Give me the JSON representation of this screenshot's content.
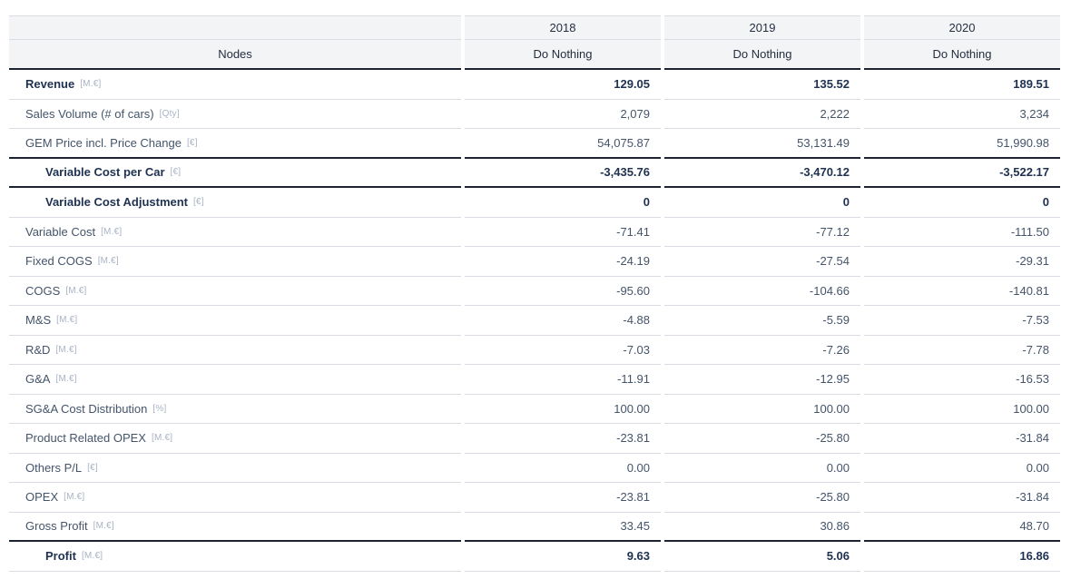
{
  "colors": {
    "header_bg": "#f3f4f6",
    "dark_border": "#1c2433",
    "light_border": "#d9dde3",
    "text_regular": "#44546a",
    "text_bold": "#1e3150",
    "unit_text": "#a8b3c5",
    "header_text": "#252e3f"
  },
  "table": {
    "nodes_header": "Nodes",
    "columns": [
      {
        "year": "2018",
        "scenario": "Do Nothing"
      },
      {
        "year": "2019",
        "scenario": "Do Nothing"
      },
      {
        "year": "2020",
        "scenario": "Do Nothing"
      }
    ],
    "rows": [
      {
        "label": "Revenue",
        "unit": "[M.€]",
        "bold": true,
        "indent": false,
        "border": "light",
        "values": [
          "129.05",
          "135.52",
          "189.51"
        ]
      },
      {
        "label": "Sales Volume (# of cars)",
        "unit": "[Qty]",
        "bold": false,
        "indent": false,
        "border": "light",
        "values": [
          "2,079",
          "2,222",
          "3,234"
        ]
      },
      {
        "label": "GEM Price incl. Price Change",
        "unit": "[€]",
        "bold": false,
        "indent": false,
        "border": "dark",
        "values": [
          "54,075.87",
          "53,131.49",
          "51,990.98"
        ]
      },
      {
        "label": "Variable Cost per Car",
        "unit": "[€]",
        "bold": true,
        "indent": true,
        "border": "dark",
        "values": [
          "-3,435.76",
          "-3,470.12",
          "-3,522.17"
        ]
      },
      {
        "label": "Variable Cost Adjustment",
        "unit": "[€]",
        "bold": true,
        "indent": true,
        "border": "light",
        "values": [
          "0",
          "0",
          "0"
        ]
      },
      {
        "label": "Variable Cost",
        "unit": "[M.€]",
        "bold": false,
        "indent": false,
        "border": "light",
        "values": [
          "-71.41",
          "-77.12",
          "-111.50"
        ]
      },
      {
        "label": "Fixed COGS",
        "unit": "[M.€]",
        "bold": false,
        "indent": false,
        "border": "light",
        "values": [
          "-24.19",
          "-27.54",
          "-29.31"
        ]
      },
      {
        "label": "COGS",
        "unit": "[M.€]",
        "bold": false,
        "indent": false,
        "border": "light",
        "values": [
          "-95.60",
          "-104.66",
          "-140.81"
        ]
      },
      {
        "label": "M&S",
        "unit": "[M.€]",
        "bold": false,
        "indent": false,
        "border": "light",
        "values": [
          "-4.88",
          "-5.59",
          "-7.53"
        ]
      },
      {
        "label": "R&D",
        "unit": "[M.€]",
        "bold": false,
        "indent": false,
        "border": "light",
        "values": [
          "-7.03",
          "-7.26",
          "-7.78"
        ]
      },
      {
        "label": "G&A",
        "unit": "[M.€]",
        "bold": false,
        "indent": false,
        "border": "light",
        "values": [
          "-11.91",
          "-12.95",
          "-16.53"
        ]
      },
      {
        "label": "SG&A Cost Distribution",
        "unit": "[%]",
        "bold": false,
        "indent": false,
        "border": "light",
        "values": [
          "100.00",
          "100.00",
          "100.00"
        ]
      },
      {
        "label": "Product Related OPEX",
        "unit": "[M.€]",
        "bold": false,
        "indent": false,
        "border": "light",
        "values": [
          "-23.81",
          "-25.80",
          "-31.84"
        ]
      },
      {
        "label": "Others P/L",
        "unit": "[€]",
        "bold": false,
        "indent": false,
        "border": "light",
        "values": [
          "0.00",
          "0.00",
          "0.00"
        ]
      },
      {
        "label": "OPEX",
        "unit": "[M.€]",
        "bold": false,
        "indent": false,
        "border": "light",
        "values": [
          "-23.81",
          "-25.80",
          "-31.84"
        ]
      },
      {
        "label": "Gross Profit",
        "unit": "[M.€]",
        "bold": false,
        "indent": false,
        "border": "dark",
        "values": [
          "33.45",
          "30.86",
          "48.70"
        ]
      },
      {
        "label": "Profit",
        "unit": "[M.€]",
        "bold": true,
        "indent": true,
        "border": "light",
        "values": [
          "9.63",
          "5.06",
          "16.86"
        ]
      }
    ]
  }
}
